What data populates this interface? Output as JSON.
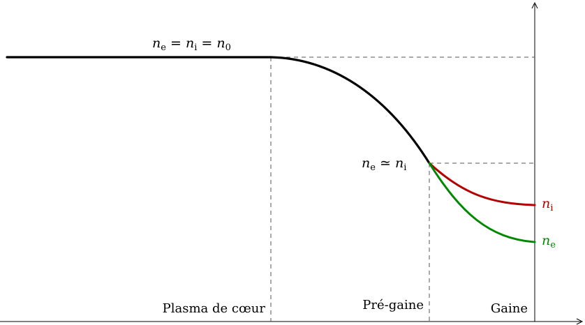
{
  "annotations": {
    "core_density": "n_e = n_i = n_0",
    "presheath_density": "n_e ≃ n_i"
  },
  "curve_labels": {
    "ions": "n_i",
    "electrons": "n_e"
  },
  "regions": {
    "core": "Plasma de cœur",
    "presheath": "Pré-gaine",
    "sheath": "Gaine"
  },
  "colors": {
    "density_curve": "#000000",
    "ion_curve": "#b30000",
    "electron_curve": "#008800",
    "guide_lines": "#555555"
  }
}
